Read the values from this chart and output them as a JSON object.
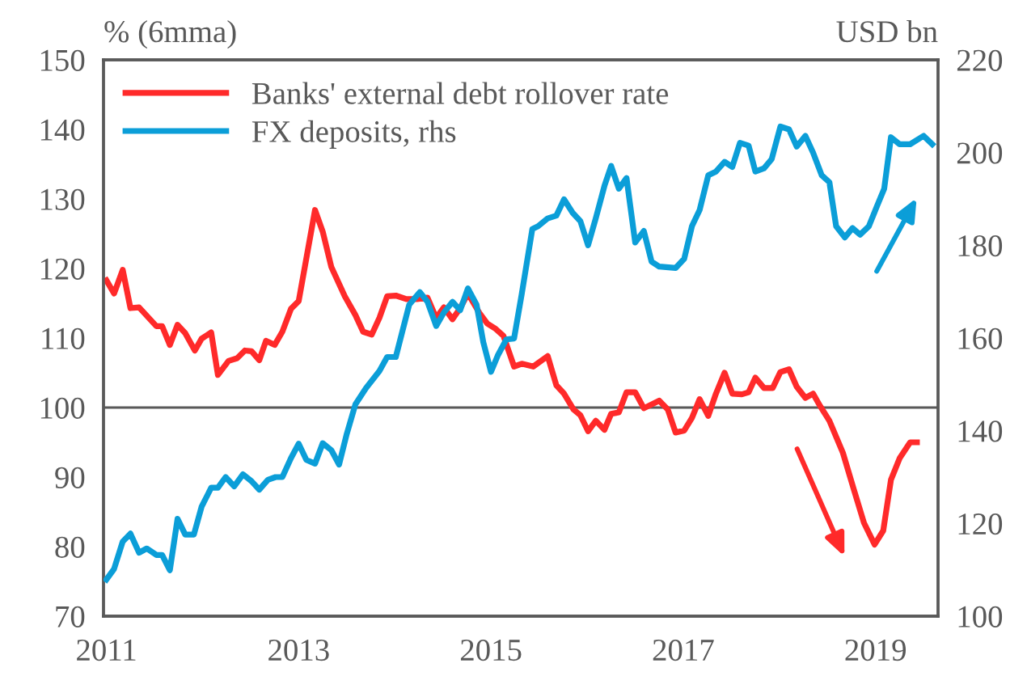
{
  "chart_data": {
    "type": "line",
    "ylabel": "% (6mma)",
    "y2label": "USD bn",
    "xlim": [
      2010.97,
      2019.65
    ],
    "xticks": [
      2011,
      2013,
      2015,
      2017,
      2019
    ],
    "ylim": [
      70,
      150
    ],
    "yticks": [
      70,
      80,
      90,
      100,
      110,
      120,
      130,
      140,
      150
    ],
    "y2lim": [
      100,
      220
    ],
    "y2ticks": [
      100,
      120,
      140,
      160,
      180,
      200,
      220
    ],
    "grid": false,
    "legend": "top left",
    "line_style": "solid",
    "ref_lines": [
      {
        "axis": "y",
        "value": 100,
        "color": "#595959"
      }
    ],
    "series": [
      {
        "name": "Banks' external debt rollover rate",
        "color": "#ff2a2a",
        "axis": "y",
        "x": [
          2011.0,
          2011.08,
          2011.17,
          2011.25,
          2011.34,
          2011.52,
          2011.58,
          2011.66,
          2011.74,
          2011.82,
          2011.92,
          2011.99,
          2012.09,
          2012.16,
          2012.27,
          2012.36,
          2012.44,
          2012.51,
          2012.59,
          2012.66,
          2012.75,
          2012.83,
          2012.92,
          2013.0,
          2013.17,
          2013.25,
          2013.34,
          2013.48,
          2013.59,
          2013.67,
          2013.76,
          2013.84,
          2013.92,
          2014.01,
          2014.12,
          2014.23,
          2014.34,
          2014.43,
          2014.51,
          2014.6,
          2014.68,
          2014.76,
          2014.88,
          2014.96,
          2015.05,
          2015.13,
          2015.24,
          2015.32,
          2015.44,
          2015.59,
          2015.68,
          2015.76,
          2015.86,
          2015.93,
          2016.01,
          2016.09,
          2016.18,
          2016.25,
          2016.33,
          2016.41,
          2016.5,
          2016.59,
          2016.75,
          2016.84,
          2016.92,
          2017.01,
          2017.09,
          2017.17,
          2017.26,
          2017.34,
          2017.43,
          2017.51,
          2017.61,
          2017.68,
          2017.75,
          2017.84,
          2017.93,
          2018.01,
          2018.1,
          2018.18,
          2018.27,
          2018.35,
          2018.42,
          2018.52,
          2018.66,
          2018.77,
          2018.88,
          2018.99,
          2019.08,
          2019.16,
          2019.25,
          2019.36,
          2019.43
        ],
        "values": [
          118.3,
          116.4,
          119.8,
          114.3,
          114.4,
          111.7,
          111.7,
          109.0,
          111.9,
          110.7,
          108.2,
          109.9,
          110.8,
          104.7,
          106.7,
          107.1,
          108.2,
          108.1,
          106.8,
          109.6,
          109.0,
          110.9,
          114.2,
          115.3,
          128.4,
          125.3,
          120.2,
          116.0,
          113.3,
          110.9,
          110.5,
          112.9,
          116.0,
          116.1,
          115.6,
          115.6,
          115.8,
          112.9,
          114.4,
          112.7,
          114.3,
          116.4,
          113.6,
          112.1,
          111.3,
          110.3,
          105.9,
          106.3,
          105.9,
          107.4,
          103.2,
          102.0,
          99.7,
          98.9,
          96.6,
          98.1,
          96.8,
          99.1,
          99.3,
          102.2,
          102.2,
          99.9,
          101.0,
          99.7,
          96.4,
          96.7,
          98.5,
          101.2,
          98.8,
          102.0,
          105.0,
          102.0,
          101.9,
          102.2,
          104.3,
          102.8,
          102.8,
          105.1,
          105.5,
          103.0,
          101.4,
          102.0,
          100.3,
          98.1,
          93.5,
          88.4,
          83.4,
          80.3,
          82.3,
          89.6,
          92.7,
          95.0,
          95.0
        ]
      },
      {
        "name": "FX deposits, rhs",
        "color": "#0b9ed8",
        "axis": "y2",
        "x": [
          2011.0,
          2011.08,
          2011.17,
          2011.25,
          2011.34,
          2011.42,
          2011.52,
          2011.58,
          2011.66,
          2011.74,
          2011.82,
          2011.91,
          2011.99,
          2012.09,
          2012.16,
          2012.24,
          2012.33,
          2012.42,
          2012.51,
          2012.59,
          2012.68,
          2012.76,
          2012.83,
          2012.92,
          2013.0,
          2013.08,
          2013.17,
          2013.25,
          2013.34,
          2013.42,
          2013.5,
          2013.59,
          2013.7,
          2013.84,
          2013.92,
          2014.01,
          2014.15,
          2014.26,
          2014.34,
          2014.43,
          2014.51,
          2014.6,
          2014.68,
          2014.76,
          2014.85,
          2014.92,
          2015.0,
          2015.07,
          2015.16,
          2015.24,
          2015.32,
          2015.43,
          2015.49,
          2015.59,
          2015.68,
          2015.76,
          2015.85,
          2015.93,
          2016.01,
          2016.09,
          2016.18,
          2016.25,
          2016.33,
          2016.41,
          2016.5,
          2016.59,
          2016.67,
          2016.75,
          2016.92,
          2017.01,
          2017.09,
          2017.17,
          2017.26,
          2017.34,
          2017.43,
          2017.51,
          2017.59,
          2017.68,
          2017.75,
          2017.84,
          2017.92,
          2018.01,
          2018.1,
          2018.18,
          2018.27,
          2018.35,
          2018.44,
          2018.52,
          2018.59,
          2018.68,
          2018.76,
          2018.84,
          2018.93,
          2019.01,
          2019.09,
          2019.16,
          2019.25,
          2019.36,
          2019.5,
          2019.59
        ],
        "values": [
          107.9,
          110.2,
          116.1,
          117.8,
          113.7,
          114.6,
          113.2,
          113.2,
          109.9,
          121.0,
          117.6,
          117.6,
          123.6,
          127.7,
          127.7,
          130.0,
          128.0,
          130.6,
          129.1,
          127.3,
          129.4,
          130.0,
          130.0,
          134.1,
          137.2,
          133.7,
          132.9,
          137.3,
          135.8,
          132.7,
          139.3,
          145.7,
          149.2,
          152.9,
          155.9,
          155.9,
          167.2,
          169.9,
          167.8,
          162.6,
          165.5,
          167.8,
          166.0,
          170.7,
          167.2,
          159.1,
          152.7,
          156.2,
          159.7,
          159.9,
          169.5,
          183.5,
          184.1,
          185.8,
          186.4,
          189.9,
          187.0,
          185.2,
          180.0,
          185.8,
          192.8,
          197.1,
          192.2,
          194.5,
          180.6,
          183.1,
          176.5,
          175.4,
          175.1,
          177.1,
          184.1,
          187.6,
          195.1,
          195.9,
          198.0,
          196.9,
          202.1,
          201.5,
          195.9,
          196.6,
          198.6,
          205.6,
          205.0,
          201.3,
          203.6,
          200.0,
          195.1,
          193.6,
          184.1,
          181.7,
          183.7,
          182.3,
          184.1,
          188.2,
          192.2,
          203.3,
          201.8,
          201.8,
          203.6,
          201.8
        ]
      }
    ]
  }
}
